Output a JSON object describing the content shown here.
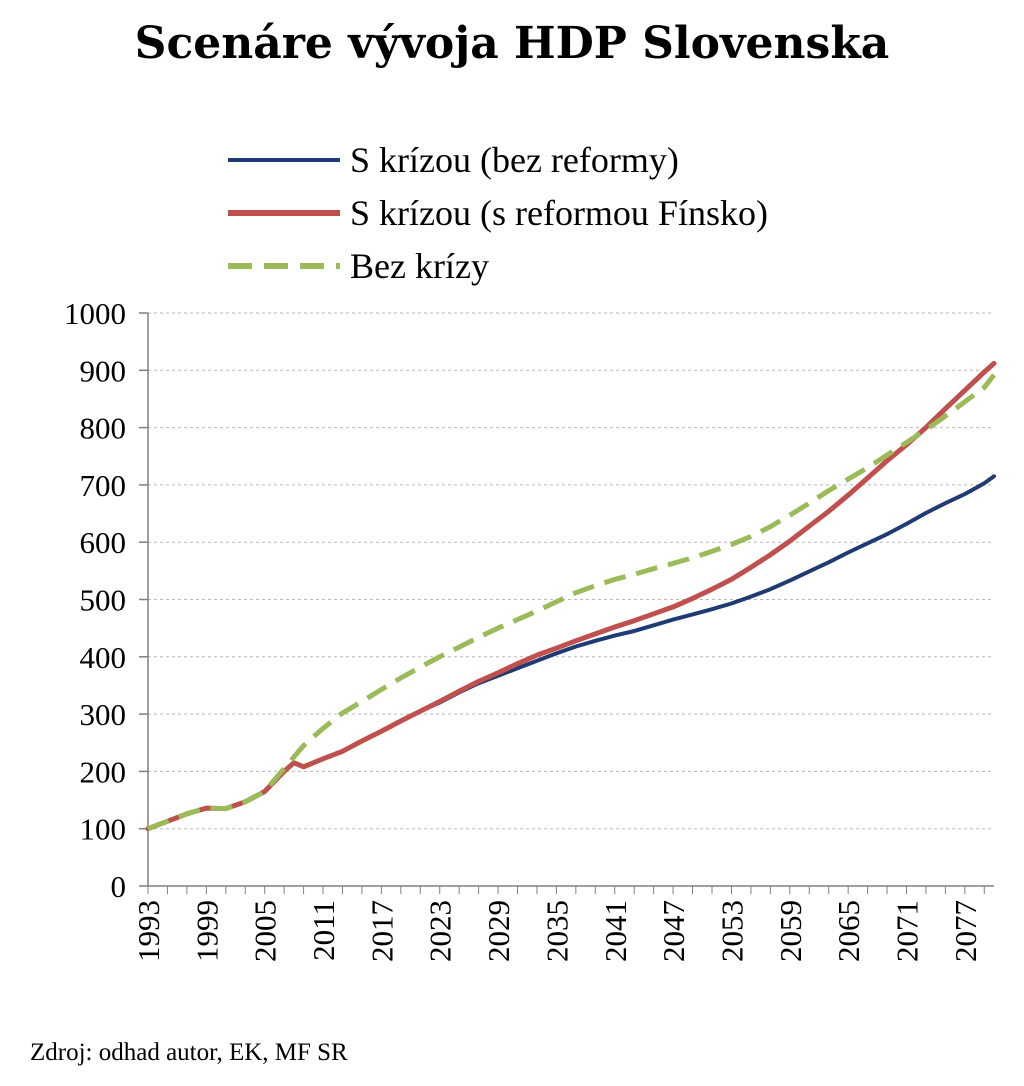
{
  "chart_data": {
    "type": "line",
    "title": "Scenáre vývoja HDP Slovenska",
    "source": "Zdroj: odhad autor, EK, MF SR",
    "xlabel": "",
    "ylabel": "",
    "ylim": [
      0,
      1000
    ],
    "yticks": [
      0,
      100,
      200,
      300,
      400,
      500,
      600,
      700,
      800,
      900,
      1000
    ],
    "xlim": [
      1993,
      2080
    ],
    "xticks": [
      "1993",
      "1999",
      "2005",
      "2011",
      "2017",
      "2023",
      "2029",
      "2035",
      "2041",
      "2047",
      "2053",
      "2059",
      "2065",
      "2071",
      "2077"
    ],
    "grid": true,
    "legend_position": "top",
    "series": [
      {
        "name": "S krízou (bez reformy)",
        "color": "#1f3b73",
        "style": "solid",
        "x": [
          1993,
          1995,
          1997,
          1999,
          2001,
          2003,
          2005,
          2007,
          2008,
          2009,
          2011,
          2013,
          2015,
          2017,
          2019,
          2021,
          2023,
          2025,
          2027,
          2029,
          2031,
          2033,
          2035,
          2037,
          2039,
          2041,
          2043,
          2045,
          2047,
          2049,
          2051,
          2053,
          2055,
          2057,
          2059,
          2061,
          2063,
          2065,
          2067,
          2069,
          2071,
          2073,
          2075,
          2077,
          2079,
          2080
        ],
        "values": [
          100,
          113,
          126,
          136,
          135,
          147,
          165,
          200,
          215,
          208,
          222,
          235,
          253,
          270,
          288,
          305,
          320,
          338,
          354,
          367,
          380,
          393,
          406,
          418,
          428,
          437,
          445,
          455,
          465,
          474,
          483,
          493,
          505,
          518,
          533,
          549,
          565,
          582,
          598,
          614,
          632,
          651,
          668,
          684,
          703,
          715
        ]
      },
      {
        "name": "S krízou (s reformou Fínsko)",
        "color": "#c0504d",
        "style": "solid",
        "x": [
          1993,
          1995,
          1997,
          1999,
          2001,
          2003,
          2005,
          2007,
          2008,
          2009,
          2011,
          2013,
          2015,
          2017,
          2019,
          2021,
          2023,
          2025,
          2027,
          2029,
          2031,
          2033,
          2035,
          2037,
          2039,
          2041,
          2043,
          2045,
          2047,
          2049,
          2051,
          2053,
          2055,
          2057,
          2059,
          2061,
          2063,
          2065,
          2067,
          2069,
          2071,
          2073,
          2075,
          2077,
          2079,
          2080
        ],
        "values": [
          100,
          113,
          126,
          136,
          135,
          147,
          165,
          200,
          215,
          208,
          222,
          235,
          253,
          270,
          288,
          305,
          322,
          340,
          357,
          372,
          388,
          403,
          415,
          428,
          440,
          452,
          463,
          475,
          487,
          502,
          518,
          535,
          556,
          578,
          602,
          628,
          654,
          682,
          712,
          742,
          770,
          800,
          833,
          865,
          897,
          912
        ]
      },
      {
        "name": "Bez krízy",
        "color": "#9bbb59",
        "style": "dashed",
        "x": [
          1993,
          1995,
          1997,
          1999,
          2001,
          2003,
          2005,
          2007,
          2009,
          2011,
          2013,
          2015,
          2017,
          2019,
          2021,
          2023,
          2025,
          2027,
          2029,
          2031,
          2033,
          2035,
          2037,
          2039,
          2041,
          2043,
          2045,
          2047,
          2049,
          2051,
          2053,
          2055,
          2057,
          2059,
          2061,
          2063,
          2065,
          2067,
          2069,
          2071,
          2073,
          2075,
          2077,
          2079,
          2080
        ],
        "values": [
          100,
          113,
          126,
          136,
          135,
          147,
          165,
          205,
          245,
          275,
          302,
          322,
          343,
          363,
          382,
          400,
          417,
          434,
          450,
          465,
          480,
          496,
          512,
          524,
          535,
          544,
          554,
          563,
          573,
          584,
          596,
          610,
          627,
          647,
          668,
          690,
          710,
          730,
          752,
          774,
          796,
          820,
          845,
          870,
          892
        ]
      }
    ]
  }
}
